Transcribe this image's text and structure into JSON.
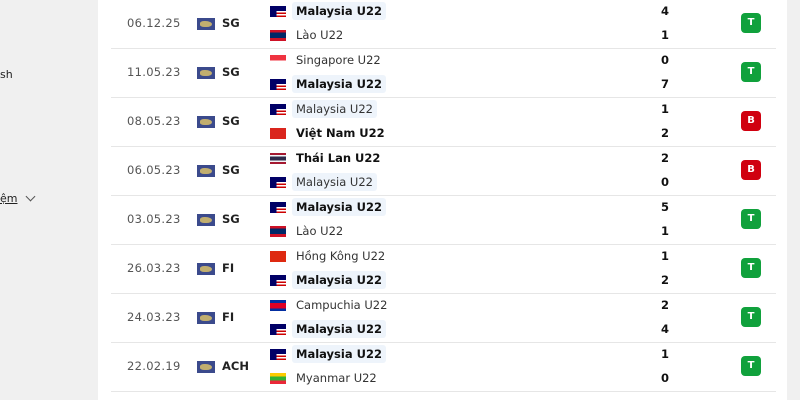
{
  "sidebar": {
    "text_1": "sh",
    "link": "ệm"
  },
  "colors": {
    "win": "#10a13c",
    "loss": "#d0000f",
    "highlight": "#eef4fb"
  },
  "matches": [
    {
      "date": "06.12.25",
      "comp": "SG",
      "home": {
        "name": "Malaysia U22",
        "flag": "malaysia",
        "bold": true,
        "hl": true
      },
      "away": {
        "name": "Lào U22",
        "flag": "laos",
        "bold": false,
        "hl": false
      },
      "home_score": "4",
      "away_score": "1",
      "result": "T"
    },
    {
      "date": "11.05.23",
      "comp": "SG",
      "home": {
        "name": "Singapore U22",
        "flag": "singapore",
        "bold": false,
        "hl": false
      },
      "away": {
        "name": "Malaysia U22",
        "flag": "malaysia",
        "bold": true,
        "hl": true
      },
      "home_score": "0",
      "away_score": "7",
      "result": "T"
    },
    {
      "date": "08.05.23",
      "comp": "SG",
      "home": {
        "name": "Malaysia U22",
        "flag": "malaysia",
        "bold": false,
        "hl": true
      },
      "away": {
        "name": "Việt Nam U22",
        "flag": "vietnam",
        "bold": true,
        "hl": false
      },
      "home_score": "1",
      "away_score": "2",
      "result": "B"
    },
    {
      "date": "06.05.23",
      "comp": "SG",
      "home": {
        "name": "Thái Lan U22",
        "flag": "thailand",
        "bold": true,
        "hl": false
      },
      "away": {
        "name": "Malaysia U22",
        "flag": "malaysia",
        "bold": false,
        "hl": true
      },
      "home_score": "2",
      "away_score": "0",
      "result": "B"
    },
    {
      "date": "03.05.23",
      "comp": "SG",
      "home": {
        "name": "Malaysia U22",
        "flag": "malaysia",
        "bold": true,
        "hl": true
      },
      "away": {
        "name": "Lào U22",
        "flag": "laos",
        "bold": false,
        "hl": false
      },
      "home_score": "5",
      "away_score": "1",
      "result": "T"
    },
    {
      "date": "26.03.23",
      "comp": "FI",
      "home": {
        "name": "Hồng Kông U22",
        "flag": "hongkong",
        "bold": false,
        "hl": false
      },
      "away": {
        "name": "Malaysia U22",
        "flag": "malaysia",
        "bold": true,
        "hl": true
      },
      "home_score": "1",
      "away_score": "2",
      "result": "T"
    },
    {
      "date": "24.03.23",
      "comp": "FI",
      "home": {
        "name": "Campuchia U22",
        "flag": "cambodia",
        "bold": false,
        "hl": false
      },
      "away": {
        "name": "Malaysia U22",
        "flag": "malaysia",
        "bold": true,
        "hl": true
      },
      "home_score": "2",
      "away_score": "4",
      "result": "T"
    },
    {
      "date": "22.02.19",
      "comp": "ACH",
      "home": {
        "name": "Malaysia U22",
        "flag": "malaysia",
        "bold": true,
        "hl": true
      },
      "away": {
        "name": "Myanmar U22",
        "flag": "myanmar",
        "bold": false,
        "hl": false
      },
      "home_score": "1",
      "away_score": "0",
      "result": "T"
    }
  ]
}
